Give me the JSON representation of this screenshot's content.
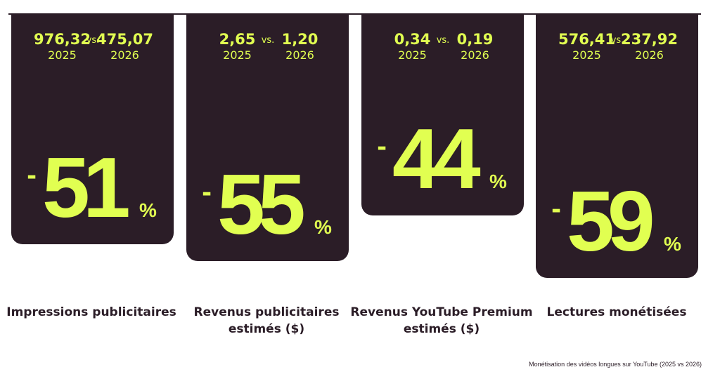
{
  "chart_data": {
    "type": "bar",
    "title": "",
    "caption": "Monétisation des vidéos longues sur YouTube (2025 vs 2026)",
    "comparison_label": "vs.",
    "percent_sign": "%",
    "minus_sign": "-",
    "colors": {
      "bar": "#2b1d27",
      "accent": "#e1ff51",
      "text": "#2b1d27"
    },
    "categories": [
      "Impressions publicitaires",
      "Revenus publicitaires estimés ($)",
      "Revenus YouTube Premium estimés ($)",
      "Lectures monétisées"
    ],
    "category_lines": [
      [
        "Impressions publicitaires"
      ],
      [
        "Revenus publicitaires",
        "estimés ($)"
      ],
      [
        "Revenus YouTube Premium",
        "estimés ($)"
      ],
      [
        "Lectures monétisées"
      ]
    ],
    "series": [
      {
        "name": "2025",
        "values": [
          "976,32",
          "2,65",
          "0,34",
          "576,41"
        ]
      },
      {
        "name": "2026",
        "values": [
          "475,07",
          "1,20",
          "0,19",
          "237,92"
        ]
      }
    ],
    "change_percent": [
      51,
      55,
      44,
      59
    ]
  }
}
